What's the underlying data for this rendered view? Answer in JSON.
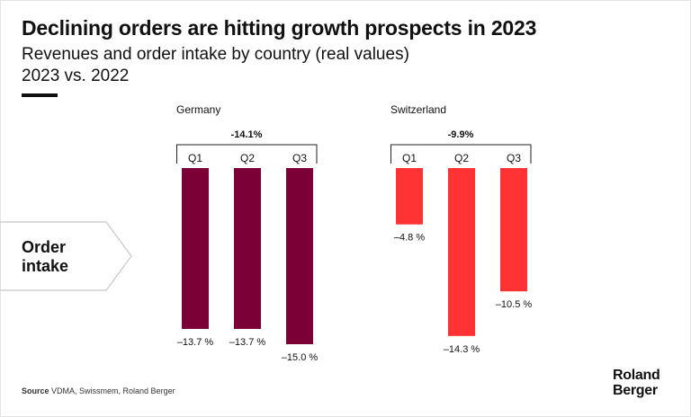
{
  "header": {
    "title": "Declining orders are hitting growth prospects in 2023",
    "subtitle": "Revenues and order intake by country (real values)",
    "period": "2023 vs. 2022"
  },
  "row_label": {
    "line1": "Order",
    "line2": "intake"
  },
  "source": {
    "label": "Source",
    "text": "VDMA, Swissmem, Roland Berger"
  },
  "logo": {
    "line1": "Roland",
    "line2": "Berger"
  },
  "colors": {
    "germany": "#7a0035",
    "switzerland": "#ff3333",
    "text": "#111111"
  },
  "chart_data": [
    {
      "type": "bar",
      "title": "Germany",
      "summary_label": "-14.1%",
      "categories": [
        "Q1",
        "Q2",
        "Q3"
      ],
      "values": [
        -13.7,
        -13.7,
        -15.0
      ],
      "data_labels": [
        "–13.7 %",
        "–13.7 %",
        "–15.0 %"
      ],
      "ylim": [
        -15.0,
        0
      ]
    },
    {
      "type": "bar",
      "title": "Switzerland",
      "summary_label": "-9.9%",
      "categories": [
        "Q1",
        "Q2",
        "Q3"
      ],
      "values": [
        -4.8,
        -14.3,
        -10.5
      ],
      "data_labels": [
        "–4.8 %",
        "–14.3 %",
        "–10.5 %"
      ],
      "ylim": [
        -15.0,
        0
      ]
    }
  ]
}
